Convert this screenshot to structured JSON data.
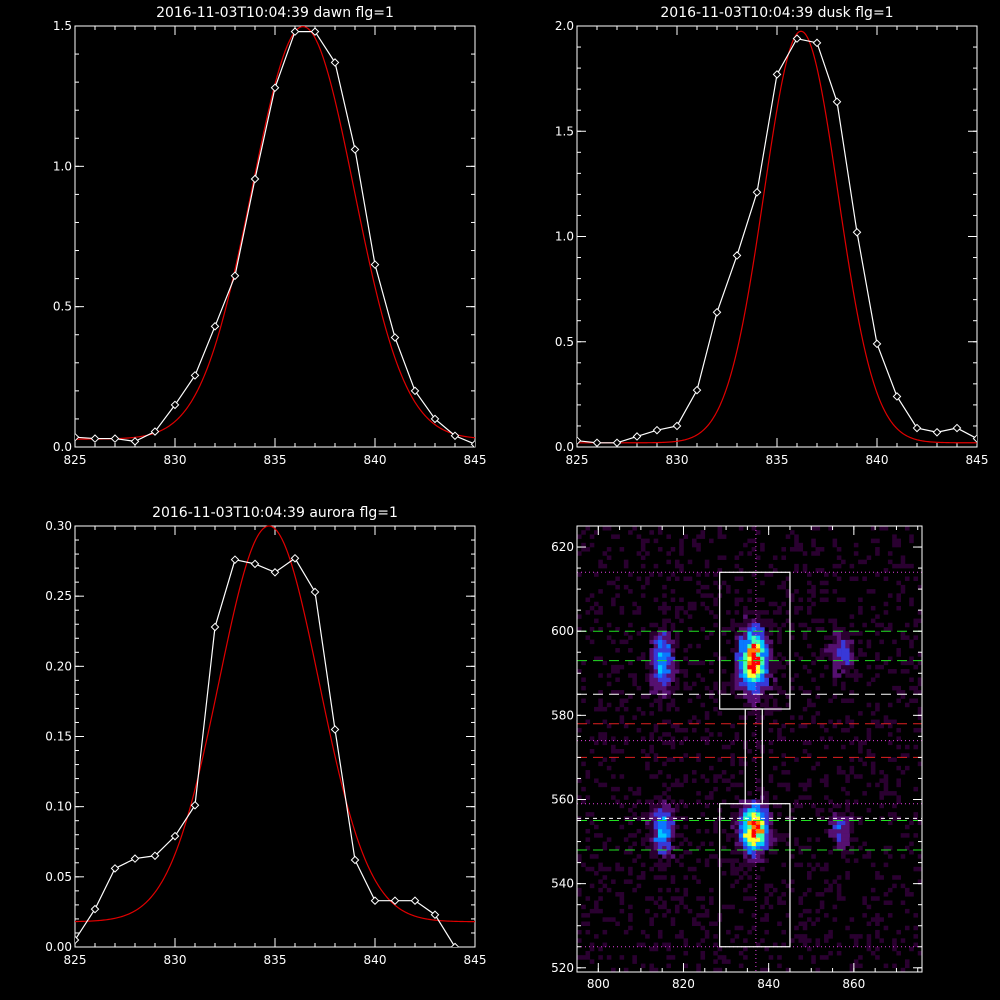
{
  "chart_data": [
    {
      "type": "line",
      "title": "2016-11-03T10:04:39 dawn flg=1",
      "xlim": [
        825,
        845
      ],
      "ylim": [
        0,
        1.5
      ],
      "xticks": [
        825,
        830,
        835,
        840,
        845
      ],
      "yticks": [
        0.0,
        0.5,
        1.0,
        1.5
      ],
      "ytick_labels": [
        "0.0",
        "0.5",
        "1.0",
        "1.5"
      ],
      "series": [
        {
          "role": "data",
          "color": "#ffffff",
          "markers": "diamond",
          "x": [
            825,
            826,
            827,
            828,
            829,
            830,
            831,
            832,
            833,
            834,
            835,
            836,
            837,
            838,
            839,
            840,
            841,
            842,
            843,
            844,
            845
          ],
          "y": [
            0.035,
            0.03,
            0.03,
            0.02,
            0.055,
            0.15,
            0.255,
            0.43,
            0.61,
            0.955,
            1.28,
            1.48,
            1.48,
            1.37,
            1.06,
            0.65,
            0.39,
            0.2,
            0.1,
            0.04,
            0.01
          ]
        },
        {
          "role": "fit",
          "color": "#e00000",
          "params": {
            "amp": 1.47,
            "center": 836.4,
            "sigma": 2.55,
            "offset": 0.028
          }
        }
      ]
    },
    {
      "type": "line",
      "title": "2016-11-03T10:04:39 dusk flg=1",
      "xlim": [
        825,
        845
      ],
      "ylim": [
        0,
        2.0
      ],
      "xticks": [
        825,
        830,
        835,
        840,
        845
      ],
      "yticks": [
        0.0,
        0.5,
        1.0,
        1.5,
        2.0
      ],
      "ytick_labels": [
        "0.0",
        "0.5",
        "1.0",
        "1.5",
        "2.0"
      ],
      "series": [
        {
          "role": "data",
          "color": "#ffffff",
          "markers": "diamond",
          "x": [
            825,
            826,
            827,
            828,
            829,
            830,
            831,
            832,
            833,
            834,
            835,
            836,
            837,
            838,
            839,
            840,
            841,
            842,
            843,
            844,
            845
          ],
          "y": [
            0.03,
            0.02,
            0.02,
            0.05,
            0.08,
            0.1,
            0.27,
            0.64,
            0.91,
            1.21,
            1.77,
            1.94,
            1.92,
            1.64,
            1.02,
            0.49,
            0.24,
            0.09,
            0.07,
            0.09,
            0.04
          ]
        },
        {
          "role": "fit",
          "color": "#e00000",
          "params": {
            "amp": 1.955,
            "center": 836.2,
            "sigma": 1.85,
            "offset": 0.02
          }
        }
      ]
    },
    {
      "type": "line",
      "title": "2016-11-03T10:04:39 aurora flg=1",
      "xlim": [
        825,
        845
      ],
      "ylim": [
        0,
        0.3
      ],
      "xticks": [
        825,
        830,
        835,
        840,
        845
      ],
      "yticks": [
        0.0,
        0.05,
        0.1,
        0.15,
        0.2,
        0.25,
        0.3
      ],
      "ytick_labels": [
        "0.00",
        "0.05",
        "0.10",
        "0.15",
        "0.20",
        "0.25",
        "0.30"
      ],
      "series": [
        {
          "role": "data",
          "color": "#ffffff",
          "markers": "diamond",
          "x": [
            825,
            826,
            827,
            828,
            829,
            830,
            831,
            832,
            833,
            834,
            835,
            836,
            837,
            838,
            839,
            840,
            841,
            842,
            843,
            844,
            845
          ],
          "y": [
            0.005,
            0.027,
            0.056,
            0.063,
            0.065,
            0.079,
            0.101,
            0.228,
            0.276,
            0.273,
            0.267,
            0.277,
            0.253,
            0.155,
            0.062,
            0.033,
            0.033,
            0.033,
            0.023,
            0.0,
            -0.003
          ]
        },
        {
          "role": "fit",
          "color": "#e00000",
          "params": {
            "amp": 0.282,
            "center": 834.7,
            "sigma": 2.5,
            "offset": 0.018
          }
        }
      ]
    },
    {
      "type": "heatmap",
      "xlim": [
        795,
        876
      ],
      "ylim": [
        519,
        625
      ],
      "xticks": [
        800,
        820,
        840,
        860
      ],
      "yticks": [
        520,
        540,
        560,
        580,
        600,
        620
      ],
      "colormap": [
        "#2a0030",
        "#551070",
        "#3838d8",
        "#0a78ff",
        "#00c8ff",
        "#40ffb0",
        "#ffff30",
        "#ff8000",
        "#ff0000"
      ],
      "blobs": [
        {
          "x": 836.5,
          "y": 593,
          "sx": 2.2,
          "sy": 5.0,
          "a": 0.95
        },
        {
          "x": 836.5,
          "y": 553,
          "sx": 2.2,
          "sy": 3.8,
          "a": 0.95
        },
        {
          "x": 815,
          "y": 593,
          "sx": 1.8,
          "sy": 5.0,
          "a": 0.45
        },
        {
          "x": 815,
          "y": 553,
          "sx": 1.8,
          "sy": 4.0,
          "a": 0.45
        },
        {
          "x": 857,
          "y": 595,
          "sx": 1.8,
          "sy": 3.5,
          "a": 0.3
        },
        {
          "x": 857,
          "y": 553,
          "sx": 1.8,
          "sy": 3.5,
          "a": 0.25
        }
      ],
      "bright_pixels": [
        [
          836,
          596
        ],
        [
          837,
          592
        ],
        [
          836,
          551
        ],
        [
          837,
          553
        ]
      ],
      "hlines": [
        {
          "y": 600,
          "color": "#20e020",
          "dash": "long"
        },
        {
          "y": 593,
          "color": "#20e020",
          "dash": "long"
        },
        {
          "y": 585,
          "color": "#ffffff",
          "dash": "long"
        },
        {
          "y": 578,
          "color": "#e02020",
          "dash": "long"
        },
        {
          "y": 570,
          "color": "#e02020",
          "dash": "long"
        },
        {
          "y": 555,
          "color": "#20e020",
          "dash": "long"
        },
        {
          "y": 548,
          "color": "#20e020",
          "dash": "long"
        },
        {
          "y": 555.5,
          "color": "#ffffff",
          "dash": "short"
        },
        {
          "y": 614,
          "color": "#e040e0",
          "dash": "dot"
        },
        {
          "y": 574,
          "color": "#e040e0",
          "dash": "dot"
        },
        {
          "y": 559,
          "color": "#e040e0",
          "dash": "dot"
        },
        {
          "y": 525,
          "color": "#e040e0",
          "dash": "dot"
        }
      ],
      "vline": {
        "x": 837,
        "color": "#e040e0",
        "dash": "dot"
      },
      "boxes": [
        {
          "x0": 828.5,
          "x1": 845,
          "y0": 581.5,
          "y1": 614
        },
        {
          "x0": 828.5,
          "x1": 845,
          "y0": 525,
          "y1": 559
        },
        {
          "x0": 834.5,
          "x1": 838.5,
          "y0": 559,
          "y1": 581.5
        }
      ]
    }
  ]
}
